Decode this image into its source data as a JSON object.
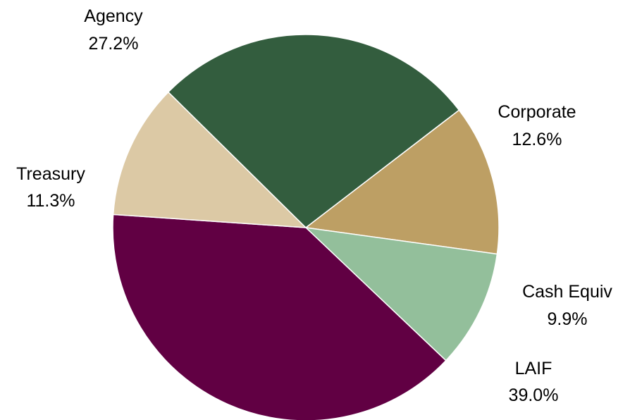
{
  "chart_data": {
    "type": "pie",
    "slices": [
      {
        "label": "Corporate",
        "pct_label": "12.6%",
        "value": 12.6,
        "color": "#bd9f64"
      },
      {
        "label": "Cash Equiv",
        "pct_label": "9.9%",
        "value": 9.9,
        "color": "#93bf9b"
      },
      {
        "label": "LAIF",
        "pct_label": "39.0%",
        "value": 39.0,
        "color": "#610043"
      },
      {
        "label": "Treasury",
        "pct_label": "11.3%",
        "value": 11.3,
        "color": "#dcc9a5"
      },
      {
        "label": "Agency",
        "pct_label": "27.2%",
        "value": 27.2,
        "color": "#335d3e"
      }
    ],
    "title": "",
    "legend": "none"
  }
}
